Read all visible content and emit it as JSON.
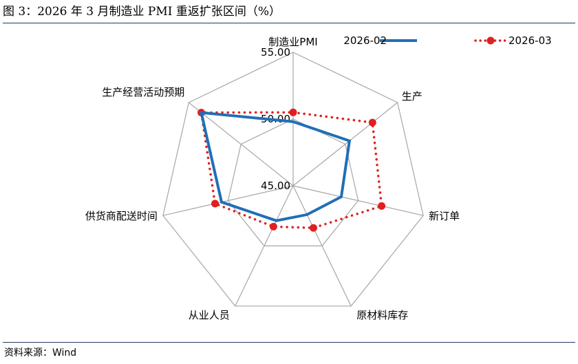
{
  "title": "图 3：2026 年 3 月制造业 PMI 重返扩张区间（%）",
  "source": "资料来源：Wind",
  "chart_data": {
    "type": "radar",
    "axes": [
      "制造业PMI",
      "生产",
      "新订单",
      "原材料库存",
      "从业人员",
      "供货商配送时间",
      "生产经营活动预期"
    ],
    "ticks": [
      "45.00",
      "50.00",
      "55.00"
    ],
    "rlim": [
      45,
      55
    ],
    "grid": true,
    "legend_position": "top-right",
    "series": [
      {
        "name": "2026-02",
        "color": "#1f6fb5",
        "style": "solid",
        "values": [
          49.8,
          50.4,
          48.7,
          47.4,
          47.9,
          50.5,
          53.8
        ]
      },
      {
        "name": "2026-03",
        "color": "#e02020",
        "style": "dotted",
        "values": [
          50.5,
          52.6,
          51.8,
          48.5,
          48.4,
          51.0,
          53.8
        ]
      }
    ]
  }
}
